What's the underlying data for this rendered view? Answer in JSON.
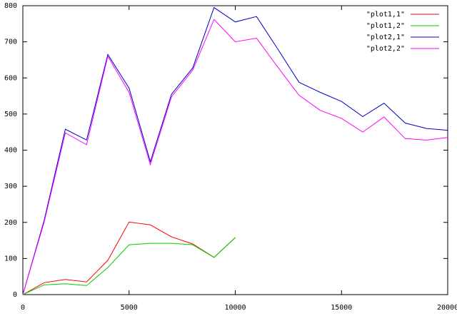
{
  "chart_data": {
    "type": "line",
    "x": [
      0,
      1000,
      2000,
      3000,
      4000,
      5000,
      6000,
      7000,
      8000,
      9000,
      10000,
      11000,
      12000,
      13000,
      14000,
      15000,
      16000,
      17000,
      18000,
      19000,
      20000
    ],
    "series": [
      {
        "name": "\"plot1,1\"",
        "color": "#ff0000",
        "values": [
          0,
          33,
          42,
          35,
          95,
          201,
          193,
          160,
          140,
          103,
          158,
          null,
          null,
          null,
          null,
          null,
          null,
          null,
          null,
          null,
          null
        ]
      },
      {
        "name": "\"plot1,2\"",
        "color": "#00cc00",
        "values": [
          0,
          27,
          30,
          25,
          75,
          138,
          142,
          142,
          138,
          103,
          158,
          null,
          null,
          null,
          null,
          null,
          null,
          null,
          null,
          null,
          null
        ]
      },
      {
        "name": "\"plot2,1\"",
        "color": "#0000cc",
        "values": [
          0,
          205,
          458,
          428,
          665,
          572,
          368,
          555,
          628,
          795,
          755,
          770,
          680,
          588,
          560,
          535,
          493,
          530,
          475,
          460,
          455
        ]
      },
      {
        "name": "\"plot2,2\"",
        "color": "#ff00ff",
        "values": [
          0,
          200,
          448,
          415,
          660,
          560,
          360,
          548,
          622,
          762,
          700,
          710,
          630,
          552,
          510,
          488,
          450,
          492,
          432,
          428,
          435
        ]
      }
    ],
    "xlim": [
      0,
      20000
    ],
    "xticks": [
      0,
      5000,
      10000,
      15000,
      20000
    ],
    "ylim": [
      0,
      800
    ],
    "yticks": [
      0,
      100,
      200,
      300,
      400,
      500,
      600,
      700,
      800
    ],
    "legend": "top-right"
  }
}
